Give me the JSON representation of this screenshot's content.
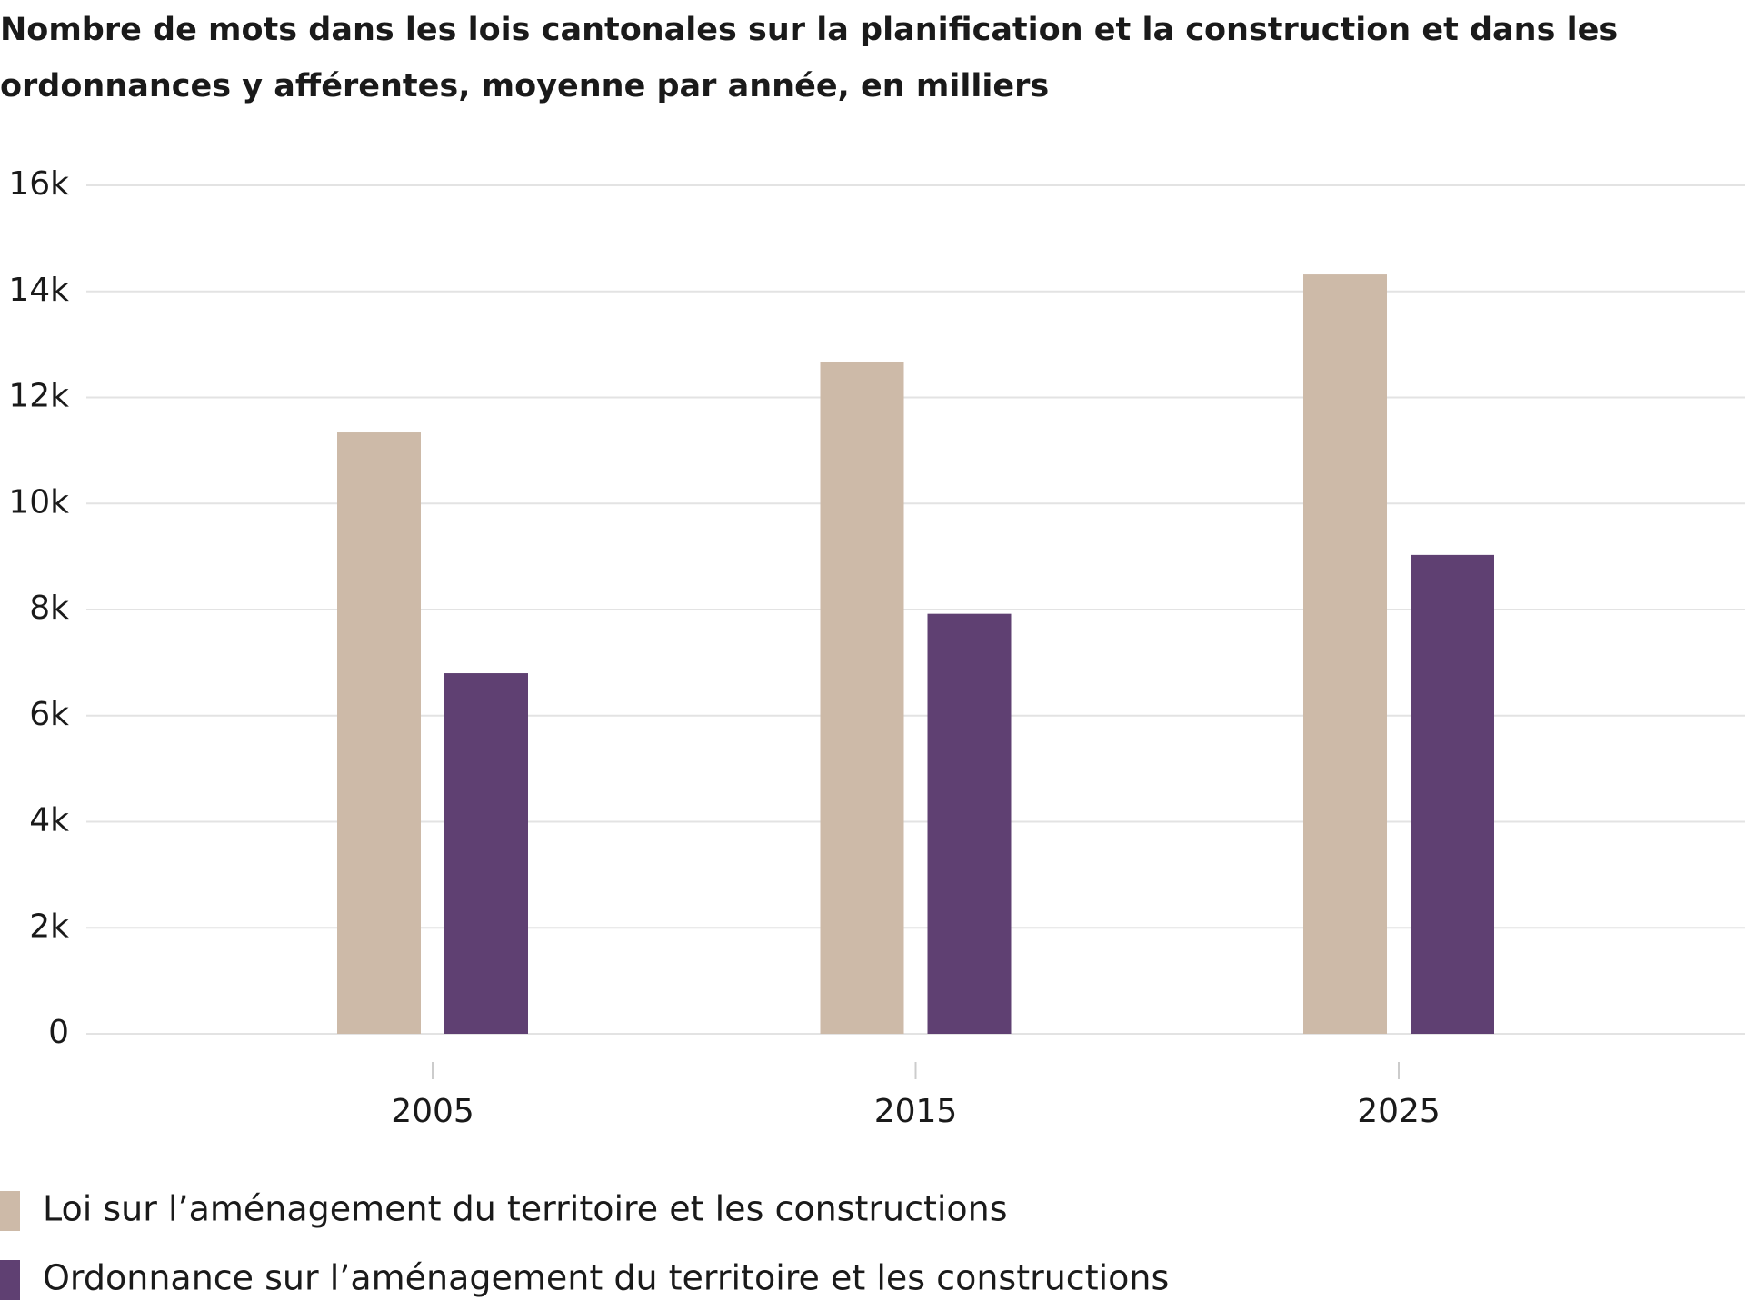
{
  "chart_data": {
    "type": "bar",
    "title": [
      "Nombre de mots dans les lois cantonales sur la planification et la construction et dans les",
      "ordonnances y afférentes, moyenne par année, en milliers"
    ],
    "categories": [
      "2005",
      "2015",
      "2025"
    ],
    "series": [
      {
        "name": "Loi sur l’aménagement du territoire et les constructions",
        "color": "#cdbaa8",
        "values": [
          11340,
          12660,
          14320
        ]
      },
      {
        "name": "Ordonnance sur l’aménagement du territoire et les constructions",
        "color": "#5f4072",
        "values": [
          6800,
          7920,
          9030
        ]
      }
    ],
    "ylim": [
      0,
      16000
    ],
    "yticks": [
      0,
      {
        "value": 2000,
        "label": "2k"
      },
      {
        "value": 4000,
        "label": "4k"
      },
      {
        "value": 6000,
        "label": "6k"
      },
      {
        "value": 8000,
        "label": "8k"
      },
      {
        "value": 10000,
        "label": "10k"
      },
      {
        "value": 12000,
        "label": "12k"
      },
      {
        "value": 14000,
        "label": "14k"
      },
      {
        "value": 16000,
        "label": "16k"
      }
    ],
    "grid": true
  }
}
